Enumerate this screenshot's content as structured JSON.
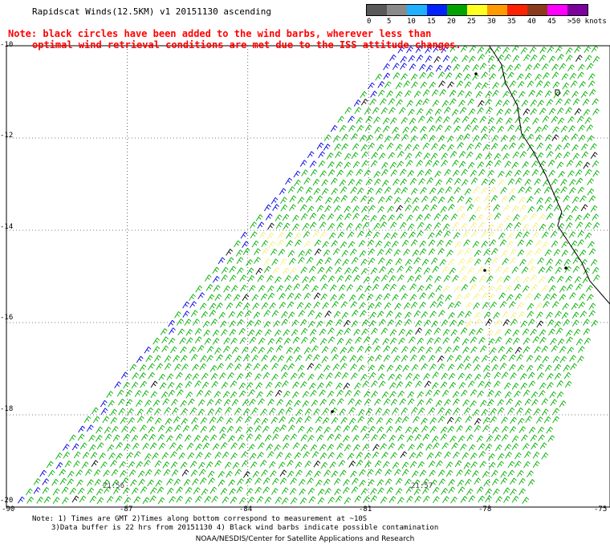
{
  "title": "Rapidscat Winds(12.5KM) v1 20151130 ascending",
  "note": {
    "line1": "Note: black circles have been added to the wind barbs, wherever less than",
    "line2": "optimal wind retrieval conditions are met due to the ISS attitude changes."
  },
  "colorbar": {
    "labels": [
      "0",
      "5",
      "10",
      "15",
      "20",
      "25",
      "30",
      "35",
      "40",
      "45",
      ">50 knots"
    ],
    "colors": [
      "#595959",
      "#8a8a8a",
      "#1fb0ff",
      "#0022ff",
      "#00a300",
      "#ffff22",
      "#ff9a00",
      "#ff2200",
      "#8b3a1e",
      "#ff00ff",
      "#7c009c"
    ],
    "cells_shown": [
      "#595959",
      "#8a8a8a",
      "#1fb0ff",
      "#0022ff",
      "#00a300",
      "#ffff22",
      "#ff9a00",
      "#ff2200",
      "#8b3a1e",
      "#ff00ff",
      "#7c009c"
    ]
  },
  "axes": {
    "lat_labels": [
      "-10",
      "-12",
      "-14",
      "-16",
      "-18",
      "-20"
    ],
    "lon_labels": [
      "-90",
      "-87",
      "-84",
      "-81",
      "-78",
      "-75"
    ],
    "lat_range": [
      -20,
      -10
    ],
    "lon_range": [
      -90,
      -75
    ]
  },
  "pass_times": [
    "21:56",
    "21:57"
  ],
  "footnote": {
    "line1": "Note: 1) Times are GMT 2)Times along bottom correspond to measurement at ~10S",
    "line2": "3)Data buffer is 22 hrs from 20151130 4) Black wind barbs indicate possible contamination"
  },
  "credit": "NOAA/NESDIS/Center for Satellite Applications and Research",
  "barb_colors": {
    "green": "#00b000",
    "yellow": "#f5f07a",
    "blue": "#0000e0",
    "black": "#000000"
  }
}
